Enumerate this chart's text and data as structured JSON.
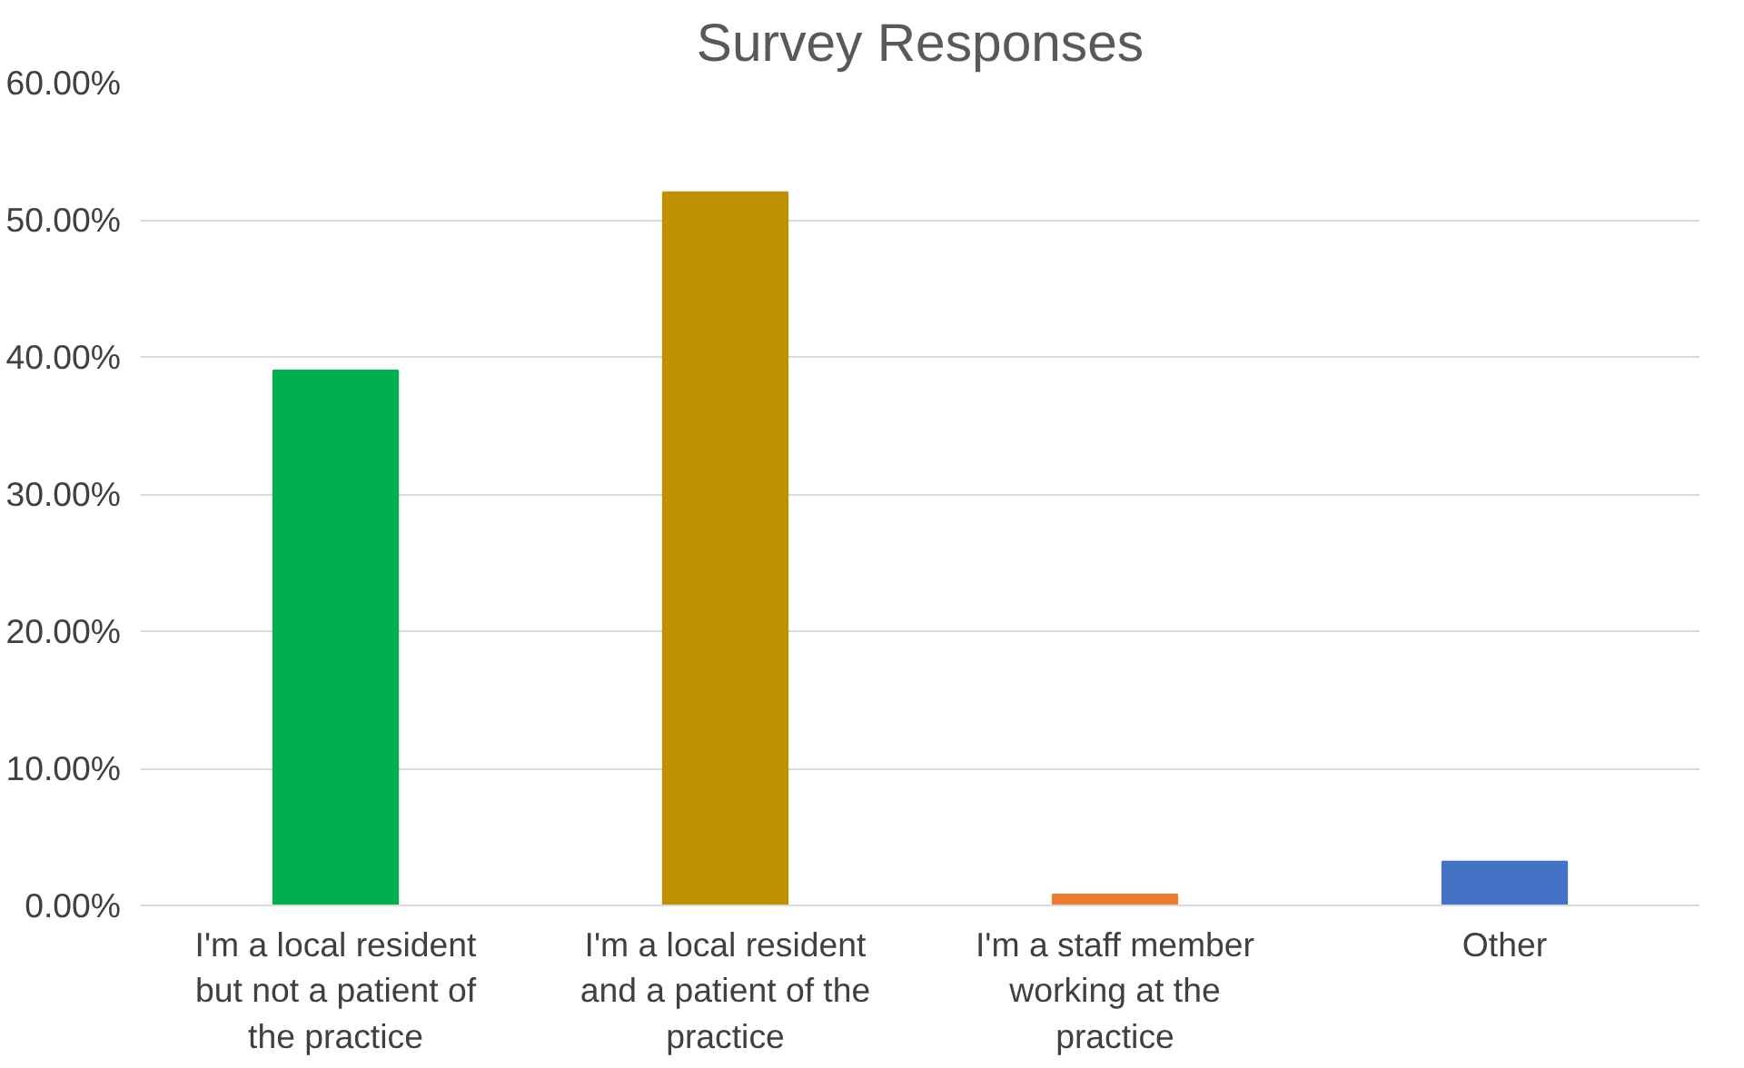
{
  "chart_data": {
    "type": "bar",
    "title": "Survey Responses",
    "categories": [
      "I'm a local resident but not a patient of the practice",
      "I'm a local resident and a patient of the practice",
      "I'm a staff member working at the practice",
      "Other"
    ],
    "values": [
      39,
      52,
      0.8,
      3.2
    ],
    "colors": [
      "#00b050",
      "#bf9000",
      "#ed7d31",
      "#4472c4"
    ],
    "ylim": [
      0,
      60
    ],
    "yticks": [
      {
        "value": 0,
        "label": "0.00%"
      },
      {
        "value": 10,
        "label": "10.00%"
      },
      {
        "value": 20,
        "label": "20.00%"
      },
      {
        "value": 30,
        "label": "30.00%"
      },
      {
        "value": 40,
        "label": "40.00%"
      },
      {
        "value": 50,
        "label": "50.00%"
      },
      {
        "value": 60,
        "label": "60.00%"
      }
    ],
    "grid": "y"
  }
}
